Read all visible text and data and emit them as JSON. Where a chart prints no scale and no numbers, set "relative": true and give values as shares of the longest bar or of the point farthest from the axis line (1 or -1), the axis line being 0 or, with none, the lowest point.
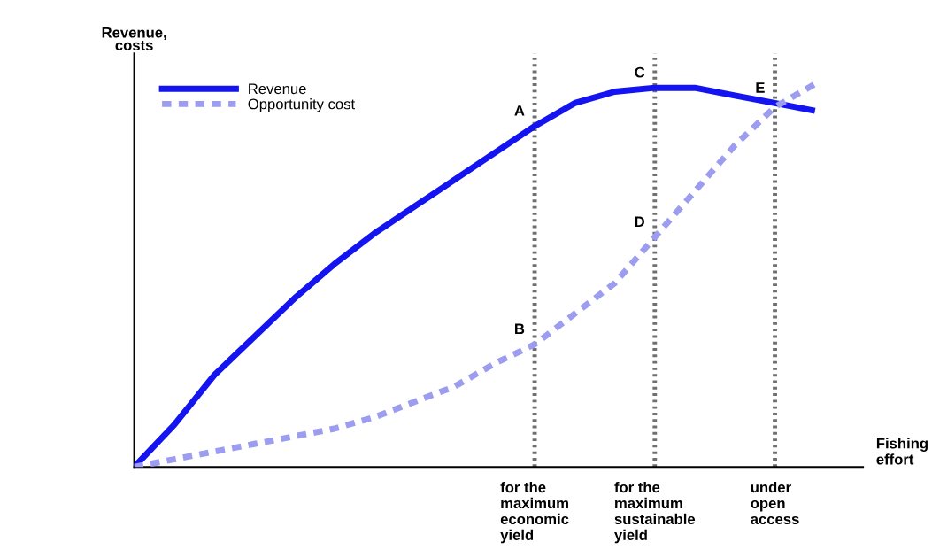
{
  "chart_data": {
    "type": "line",
    "relative": true,
    "xlabel": "Fishing\neffort",
    "ylabel": "Revenue,\ncosts",
    "categories": [
      null,
      null,
      null,
      null,
      null,
      null,
      null,
      null,
      null,
      null,
      "for the\nmaximum\neconomic\nyield",
      null,
      null,
      "for the\nmaximum\nsustainable\nyield",
      null,
      null,
      "under\nopen\naccess",
      null
    ],
    "series": [
      {
        "name": "Revenue",
        "color": "#1414f0",
        "line_style": "solid",
        "values": [
          0,
          0.11,
          0.24,
          0.34,
          0.44,
          0.53,
          0.61,
          0.68,
          0.75,
          0.82,
          0.89,
          0.95,
          0.98,
          0.99,
          0.99,
          0.97,
          0.95,
          0.93
        ]
      },
      {
        "name": "Opportunity cost",
        "color": "#9c9cf0",
        "line_style": "dashed",
        "values": [
          0,
          0.02,
          0.04,
          0.06,
          0.08,
          0.1,
          0.13,
          0.17,
          0.21,
          0.27,
          0.32,
          0.4,
          0.48,
          0.6,
          0.72,
          0.84,
          0.94,
          1
        ]
      }
    ],
    "ref_lines": [
      {
        "axis": "x",
        "value": "for the\nmaximum\neconomic\nyield",
        "color": "#707070",
        "line_style": "dotted"
      },
      {
        "axis": "x",
        "value": "for the\nmaximum\nsustainable\nyield",
        "color": "#707070",
        "line_style": "dotted"
      },
      {
        "axis": "x",
        "value": "under\nopen\naccess",
        "color": "#707070",
        "line_style": "dotted"
      }
    ],
    "annotations": [
      {
        "text": "A",
        "x": "for the\nmaximum\neconomic\nyield",
        "y": 0.89
      },
      {
        "text": "B",
        "x": "for the\nmaximum\neconomic\nyield",
        "y": 0.32
      },
      {
        "text": "C",
        "x": "for the\nmaximum\nsustainable\nyield",
        "y": 0.99
      },
      {
        "text": "D",
        "x": "for the\nmaximum\nsustainable\nyield",
        "y": 0.6
      },
      {
        "text": "E",
        "x": "under\nopen\naccess",
        "y": 0.95
      }
    ],
    "legend": "top left",
    "grid": false,
    "marker": "none"
  }
}
